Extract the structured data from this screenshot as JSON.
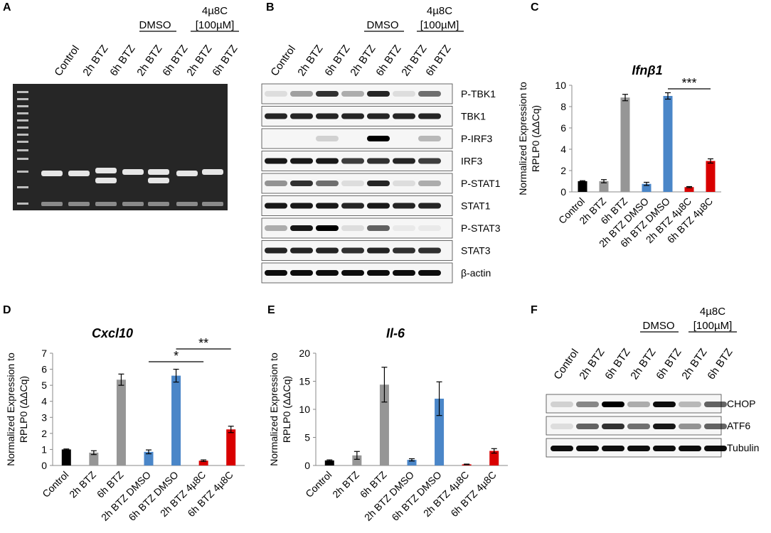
{
  "panel_letters": {
    "a": "A",
    "b": "B",
    "c": "C",
    "d": "D",
    "e": "E",
    "f": "F"
  },
  "lanes": [
    "Control",
    "2h BTZ",
    "6h BTZ",
    "2h BTZ",
    "6h BTZ",
    "2h BTZ",
    "6h BTZ"
  ],
  "groups": {
    "dmso": "DMSO",
    "inhibitor": "4µ8C",
    "inhibitor_conc": "[100µM]"
  },
  "blot_b": [
    "P-TBK1",
    "TBK1",
    "P-IRF3",
    "IRF3",
    "P-STAT1",
    "STAT1",
    "P-STAT3",
    "STAT3",
    "β-actin"
  ],
  "blot_f": [
    "CHOP",
    "ATF6",
    "Tubulin"
  ],
  "colors": {
    "control": "#000000",
    "btz": "#969696",
    "dmso": "#4a86c8",
    "inhibitor": "#d90000"
  },
  "ylabel_line1": "Normalized Expression to",
  "ylabel_line2": "RPLP0 (ΔΔCq)",
  "chart_data": [
    {
      "type": "bar",
      "panel": "C",
      "title": "Ifnβ1",
      "categories": [
        "Control",
        "2h BTZ",
        "6h BTZ",
        "2h BTZ DMSO",
        "6h BTZ DMSO",
        "2h BTZ 4µ8C",
        "6h BTZ 4µ8C"
      ],
      "values": [
        1.0,
        1.0,
        8.85,
        0.75,
        9.0,
        0.45,
        2.9
      ],
      "errors": [
        0.05,
        0.15,
        0.3,
        0.15,
        0.3,
        0.05,
        0.2
      ],
      "ylim": [
        0,
        10
      ],
      "ticks": [
        0,
        2,
        4,
        6,
        8,
        10
      ],
      "significance": [
        {
          "from": 4,
          "to": 6,
          "label": "***"
        }
      ]
    },
    {
      "type": "bar",
      "panel": "D",
      "title": "Cxcl10",
      "categories": [
        "Control",
        "2h BTZ",
        "6h BTZ",
        "2h BTZ DMSO",
        "6h BTZ DMSO",
        "2h BTZ 4µ8C",
        "6h BTZ 4µ8C"
      ],
      "values": [
        1.0,
        0.8,
        5.35,
        0.85,
        5.6,
        0.3,
        2.25
      ],
      "errors": [
        0.03,
        0.12,
        0.35,
        0.12,
        0.4,
        0.05,
        0.2
      ],
      "ylim": [
        0,
        7
      ],
      "ticks": [
        0,
        1,
        2,
        3,
        4,
        5,
        6,
        7
      ],
      "significance": [
        {
          "from": 3,
          "to": 5,
          "label": "*"
        },
        {
          "from": 4,
          "to": 6,
          "label": "**"
        }
      ]
    },
    {
      "type": "bar",
      "panel": "E",
      "title": "Il-6",
      "categories": [
        "Control",
        "2h BTZ",
        "6h BTZ",
        "2h BTZ DMSO",
        "6h BTZ DMSO",
        "2h BTZ 4µ8C",
        "6h BTZ 4µ8C"
      ],
      "values": [
        0.9,
        1.8,
        14.4,
        1.0,
        11.9,
        0.2,
        2.6
      ],
      "errors": [
        0.1,
        0.7,
        3.1,
        0.2,
        3.0,
        0.05,
        0.4
      ],
      "ylim": [
        0,
        20
      ],
      "ticks": [
        0,
        5,
        10,
        15,
        20
      ],
      "significance": []
    }
  ]
}
